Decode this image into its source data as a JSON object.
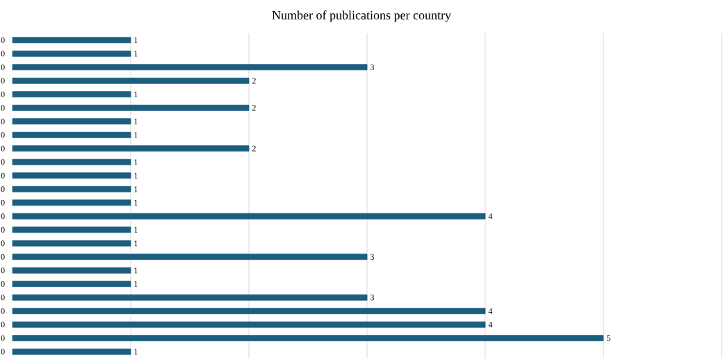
{
  "chart_data": {
    "type": "bar",
    "orientation": "horizontal",
    "title": "Number of publications per country",
    "categories": [
      "0",
      "0",
      "0",
      "0",
      "0",
      "0",
      "0",
      "0",
      "0",
      "0",
      "0",
      "0",
      "0",
      "0",
      "0",
      "0",
      "0",
      "0",
      "0",
      "0",
      "0",
      "0",
      "0",
      "0"
    ],
    "values": [
      1,
      1,
      3,
      2,
      1,
      2,
      1,
      1,
      2,
      1,
      1,
      1,
      1,
      4,
      1,
      1,
      3,
      1,
      1,
      3,
      4,
      4,
      5,
      1
    ],
    "color": "#1b5e7e",
    "xlim": [
      0,
      6
    ],
    "xticks": [
      {
        "value": 1,
        "label": null
      },
      {
        "value": 2,
        "label": null
      },
      {
        "value": 3,
        "label": null
      },
      {
        "value": 4,
        "label": null
      },
      {
        "value": 5,
        "label": null
      },
      {
        "value": 6,
        "label": null
      }
    ],
    "grid": "x",
    "data_labels": true
  }
}
